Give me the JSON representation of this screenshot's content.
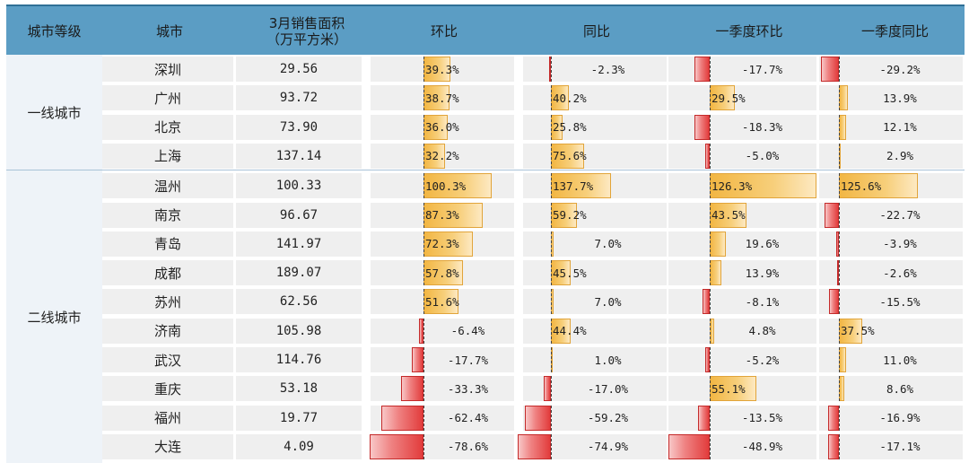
{
  "headers": {
    "tier": "城市等级",
    "city": "城市",
    "area_line1": "3月销售面积",
    "area_line2": "（万平方米）",
    "mom": "环比",
    "yoy": "同比",
    "q1_mom": "一季度环比",
    "q1_yoy": "一季度同比"
  },
  "groups": {
    "tier1": "一线城市",
    "tier2": "二线城市"
  },
  "rows": [
    {
      "tier": "tier1",
      "city": "深圳",
      "area": "29.56",
      "mom": {
        "label": "39.3%",
        "value": 39.3
      },
      "yoy": {
        "label": "-2.3%",
        "value": -2.3
      },
      "q1_mom": {
        "label": "-17.7%",
        "value": -17.7
      },
      "q1_yoy": {
        "label": "-29.2%",
        "value": -29.2
      }
    },
    {
      "tier": "tier1",
      "city": "广州",
      "area": "93.72",
      "mom": {
        "label": "38.7%",
        "value": 38.7
      },
      "yoy": {
        "label": "40.2%",
        "value": 40.2
      },
      "q1_mom": {
        "label": "29.5%",
        "value": 29.5
      },
      "q1_yoy": {
        "label": "13.9%",
        "value": 13.9
      }
    },
    {
      "tier": "tier1",
      "city": "北京",
      "area": "73.90",
      "mom": {
        "label": "36.0%",
        "value": 36.0
      },
      "yoy": {
        "label": "25.8%",
        "value": 25.8
      },
      "q1_mom": {
        "label": "-18.3%",
        "value": -18.3
      },
      "q1_yoy": {
        "label": "12.1%",
        "value": 12.1
      }
    },
    {
      "tier": "tier1",
      "city": "上海",
      "area": "137.14",
      "mom": {
        "label": "32.2%",
        "value": 32.2
      },
      "yoy": {
        "label": "75.6%",
        "value": 75.6
      },
      "q1_mom": {
        "label": "-5.0%",
        "value": -5.0
      },
      "q1_yoy": {
        "label": "2.9%",
        "value": 2.9
      }
    },
    {
      "tier": "tier2",
      "city": "温州",
      "area": "100.33",
      "mom": {
        "label": "100.3%",
        "value": 100.3
      },
      "yoy": {
        "label": "137.7%",
        "value": 137.7
      },
      "q1_mom": {
        "label": "126.3%",
        "value": 126.3
      },
      "q1_yoy": {
        "label": "125.6%",
        "value": 125.6
      }
    },
    {
      "tier": "tier2",
      "city": "南京",
      "area": "96.67",
      "mom": {
        "label": "87.3%",
        "value": 87.3
      },
      "yoy": {
        "label": "59.2%",
        "value": 59.2
      },
      "q1_mom": {
        "label": "43.5%",
        "value": 43.5
      },
      "q1_yoy": {
        "label": "-22.7%",
        "value": -22.7
      }
    },
    {
      "tier": "tier2",
      "city": "青岛",
      "area": "141.97",
      "mom": {
        "label": "72.3%",
        "value": 72.3
      },
      "yoy": {
        "label": "7.0%",
        "value": 7.0
      },
      "q1_mom": {
        "label": "19.6%",
        "value": 19.6
      },
      "q1_yoy": {
        "label": "-3.9%",
        "value": -3.9
      }
    },
    {
      "tier": "tier2",
      "city": "成都",
      "area": "189.07",
      "mom": {
        "label": "57.8%",
        "value": 57.8
      },
      "yoy": {
        "label": "45.5%",
        "value": 45.5
      },
      "q1_mom": {
        "label": "13.9%",
        "value": 13.9
      },
      "q1_yoy": {
        "label": "-2.6%",
        "value": -2.6
      }
    },
    {
      "tier": "tier2",
      "city": "苏州",
      "area": "62.56",
      "mom": {
        "label": "51.6%",
        "value": 51.6
      },
      "yoy": {
        "label": "7.0%",
        "value": 7.0
      },
      "q1_mom": {
        "label": "-8.1%",
        "value": -8.1
      },
      "q1_yoy": {
        "label": "-15.5%",
        "value": -15.5
      }
    },
    {
      "tier": "tier2",
      "city": "济南",
      "area": "105.98",
      "mom": {
        "label": "-6.4%",
        "value": -6.4
      },
      "yoy": {
        "label": "44.4%",
        "value": 44.4
      },
      "q1_mom": {
        "label": "4.8%",
        "value": 4.8
      },
      "q1_yoy": {
        "label": "37.5%",
        "value": 37.5
      }
    },
    {
      "tier": "tier2",
      "city": "武汉",
      "area": "114.76",
      "mom": {
        "label": "-17.7%",
        "value": -17.7
      },
      "yoy": {
        "label": "1.0%",
        "value": 1.0
      },
      "q1_mom": {
        "label": "-5.2%",
        "value": -5.2
      },
      "q1_yoy": {
        "label": "11.0%",
        "value": 11.0
      }
    },
    {
      "tier": "tier2",
      "city": "重庆",
      "area": "53.18",
      "mom": {
        "label": "-33.3%",
        "value": -33.3
      },
      "yoy": {
        "label": "-17.0%",
        "value": -17.0
      },
      "q1_mom": {
        "label": "55.1%",
        "value": 55.1
      },
      "q1_yoy": {
        "label": "8.6%",
        "value": 8.6
      }
    },
    {
      "tier": "tier2",
      "city": "福州",
      "area": "19.77",
      "mom": {
        "label": "-62.4%",
        "value": -62.4
      },
      "yoy": {
        "label": "-59.2%",
        "value": -59.2
      },
      "q1_mom": {
        "label": "-13.5%",
        "value": -13.5
      },
      "q1_yoy": {
        "label": "-16.9%",
        "value": -16.9
      }
    },
    {
      "tier": "tier2",
      "city": "大连",
      "area": "4.09",
      "mom": {
        "label": "-78.6%",
        "value": -78.6
      },
      "yoy": {
        "label": "-74.9%",
        "value": -74.9
      },
      "q1_mom": {
        "label": "-48.9%",
        "value": -48.9
      },
      "q1_yoy": {
        "label": "-17.1%",
        "value": -17.1
      }
    }
  ],
  "colors": {
    "header_bg": "#5b9dc4",
    "positive_bar": "#f2b643",
    "negative_bar": "#e23c3c",
    "group_bg": "#eef3f8"
  }
}
